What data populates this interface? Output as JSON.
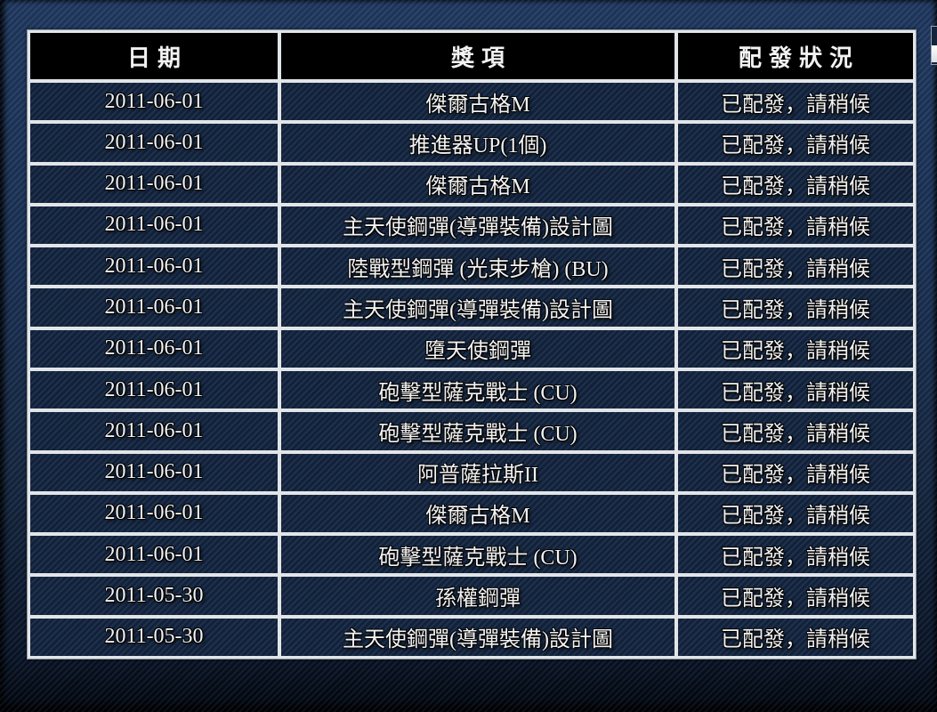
{
  "table": {
    "headers": [
      "日期",
      "獎項",
      "配發狀況"
    ],
    "rows": [
      {
        "date": "2011-06-01",
        "prize": "傑爾古格M",
        "status": "已配發，請稍候"
      },
      {
        "date": "2011-06-01",
        "prize": "推進器UP(1個)",
        "status": "已配發，請稍候"
      },
      {
        "date": "2011-06-01",
        "prize": "傑爾古格M",
        "status": "已配發，請稍候"
      },
      {
        "date": "2011-06-01",
        "prize": "主天使鋼彈(導彈裝備)設計圖",
        "status": "已配發，請稍候"
      },
      {
        "date": "2011-06-01",
        "prize": "陸戰型鋼彈 (光束步槍) (BU)",
        "status": "已配發，請稍候"
      },
      {
        "date": "2011-06-01",
        "prize": "主天使鋼彈(導彈裝備)設計圖",
        "status": "已配發，請稍候"
      },
      {
        "date": "2011-06-01",
        "prize": "墮天使鋼彈",
        "status": "已配發，請稍候"
      },
      {
        "date": "2011-06-01",
        "prize": "砲擊型薩克戰士 (CU)",
        "status": "已配發，請稍候"
      },
      {
        "date": "2011-06-01",
        "prize": "砲擊型薩克戰士 (CU)",
        "status": "已配發，請稍候"
      },
      {
        "date": "2011-06-01",
        "prize": "阿普薩拉斯II",
        "status": "已配發，請稍候"
      },
      {
        "date": "2011-06-01",
        "prize": "傑爾古格M",
        "status": "已配發，請稍候"
      },
      {
        "date": "2011-06-01",
        "prize": "砲擊型薩克戰士 (CU)",
        "status": "已配發，請稍候"
      },
      {
        "date": "2011-05-30",
        "prize": "孫權鋼彈",
        "status": "已配發，請稍候"
      },
      {
        "date": "2011-05-30",
        "prize": "主天使鋼彈(導彈裝備)設計圖",
        "status": "已配發，請稍候"
      }
    ]
  },
  "colors": {
    "header_bg": "#000000",
    "row_bg": "#152640",
    "border_light": "#e2e5e8",
    "text_color": "#f2f2f2"
  }
}
